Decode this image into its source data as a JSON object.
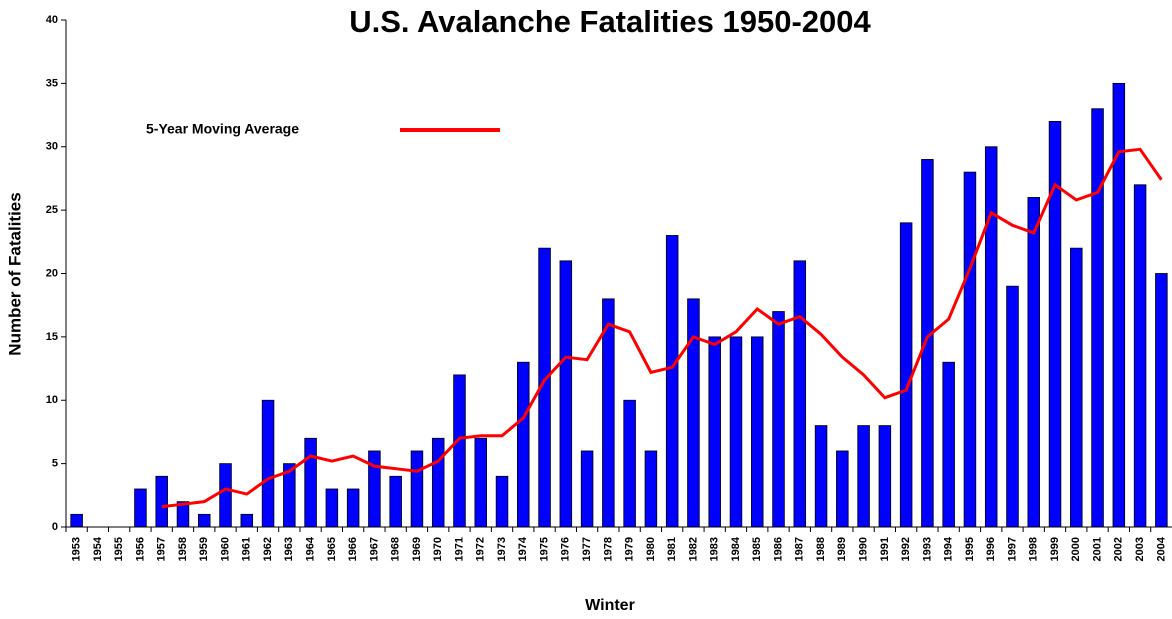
{
  "chart_data": {
    "type": "bar",
    "title": "U.S. Avalanche Fatalities 1950-2004",
    "x_label": "Winter",
    "y_label": "Number of Fatalities",
    "categories": [
      "1953",
      "1954",
      "1955",
      "1956",
      "1957",
      "1958",
      "1959",
      "1960",
      "1961",
      "1962",
      "1963",
      "1964",
      "1965",
      "1966",
      "1967",
      "1968",
      "1969",
      "1970",
      "1971",
      "1972",
      "1973",
      "1974",
      "1975",
      "1976",
      "1977",
      "1978",
      "1979",
      "1980",
      "1981",
      "1982",
      "1983",
      "1984",
      "1985",
      "1986",
      "1987",
      "1988",
      "1989",
      "1990",
      "1991",
      "1992",
      "1993",
      "1994",
      "1995",
      "1996",
      "1997",
      "1998",
      "1999",
      "2000",
      "2001",
      "2002",
      "2003",
      "2004"
    ],
    "series": [
      {
        "type": "bar",
        "color": "#0000ff",
        "values": [
          1,
          0,
          0,
          3,
          4,
          2,
          1,
          5,
          1,
          10,
          5,
          7,
          3,
          3,
          6,
          4,
          6,
          7,
          12,
          7,
          4,
          13,
          22,
          21,
          6,
          18,
          10,
          6,
          23,
          18,
          15,
          15,
          15,
          17,
          21,
          8,
          6,
          8,
          8,
          24,
          29,
          13,
          28,
          30,
          19,
          26,
          32,
          22,
          33,
          35,
          27,
          20
        ]
      },
      {
        "type": "line",
        "name": "5-Year Moving Average",
        "color": "#ff0000",
        "values": [
          null,
          null,
          null,
          null,
          1.6,
          1.8,
          2,
          3,
          2.6,
          3.8,
          4.4,
          5.6,
          5.2,
          5.6,
          4.8,
          4.6,
          4.4,
          5.2,
          7,
          7.2,
          7.2,
          8.6,
          11.6,
          13.4,
          13.2,
          16,
          15.4,
          12.2,
          12.6,
          15,
          14.4,
          15.4,
          17.2,
          16,
          16.6,
          15.2,
          13.4,
          12,
          10.2,
          10.8,
          15,
          16.4,
          20.4,
          24.8,
          23.8,
          23.2,
          27,
          25.8,
          26.4,
          29.6,
          29.8,
          27.4
        ]
      }
    ],
    "ylim": [
      0,
      40
    ],
    "yticks": [
      0,
      5,
      10,
      15,
      20,
      25,
      30,
      35,
      40
    ],
    "grid": false,
    "legend": "top-left"
  }
}
